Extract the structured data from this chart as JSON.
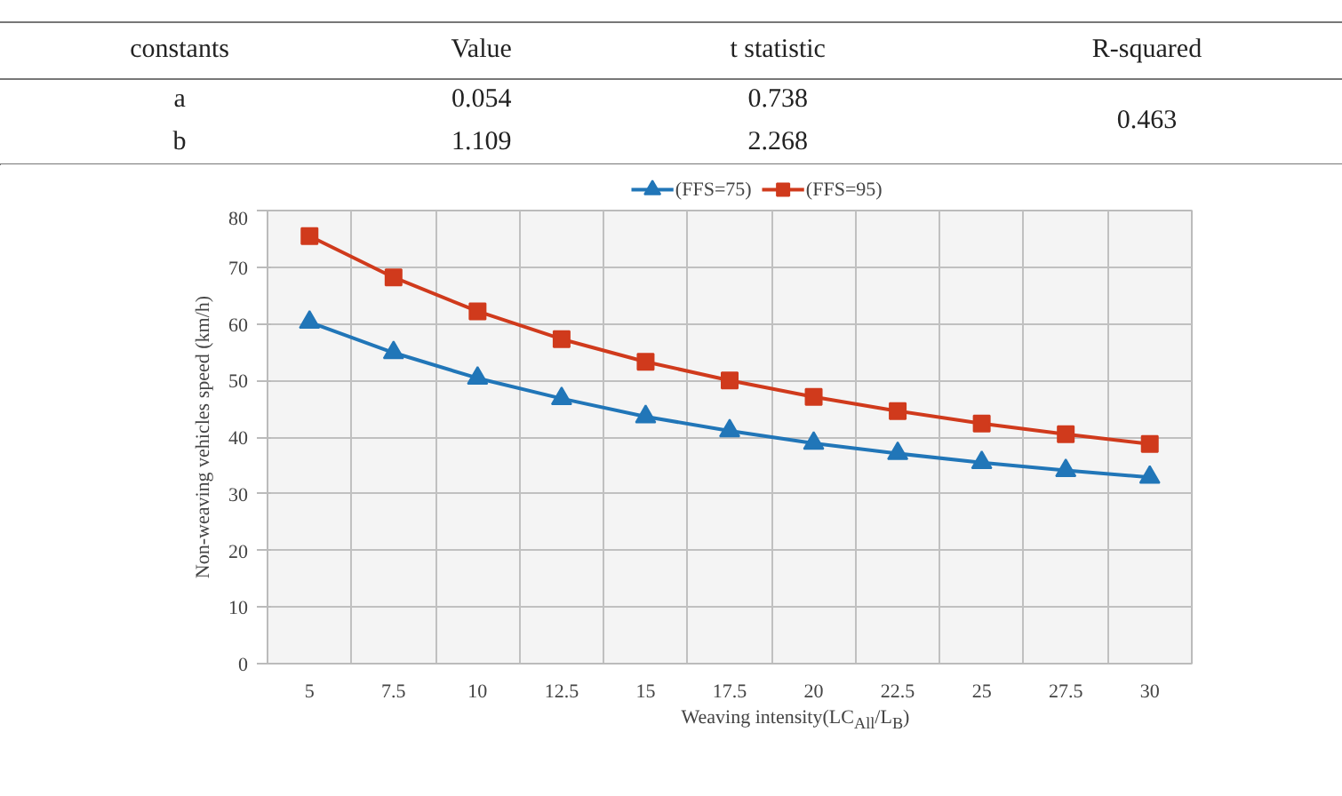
{
  "chart_data": {
    "type": "line",
    "categories": [
      "5",
      "7.5",
      "10",
      "12.5",
      "15",
      "17.5",
      "20",
      "22.5",
      "25",
      "27.5",
      "30"
    ],
    "series": [
      {
        "name": "(FFS=75)",
        "color": "#2176b8",
        "marker": "triangle",
        "values": [
          60.3,
          54.9,
          50.4,
          46.8,
          43.6,
          41.1,
          38.9,
          37.1,
          35.5,
          34.1,
          32.9
        ]
      },
      {
        "name": "(FFS=95)",
        "color": "#d03a1c",
        "marker": "square",
        "values": [
          75.5,
          68.2,
          62.2,
          57.3,
          53.3,
          50.0,
          47.1,
          44.6,
          42.4,
          40.5,
          38.8
        ]
      }
    ],
    "ylim": [
      0,
      80
    ],
    "yticks": [
      0,
      10,
      20,
      30,
      40,
      50,
      60,
      70,
      80
    ],
    "xlabel": "Weaving intensity(LC$_{All}$/L$_{B}$)",
    "ylabel": "Non-weaving vehicles speed (km/h)",
    "grid": true,
    "legend": "top",
    "line_style": "solid",
    "annotations": [
      "constants",
      "Value",
      "t statistic",
      "R-squared",
      "a",
      "0.054",
      "0.738",
      "b",
      "1.109",
      "2.268",
      "0.463"
    ]
  }
}
